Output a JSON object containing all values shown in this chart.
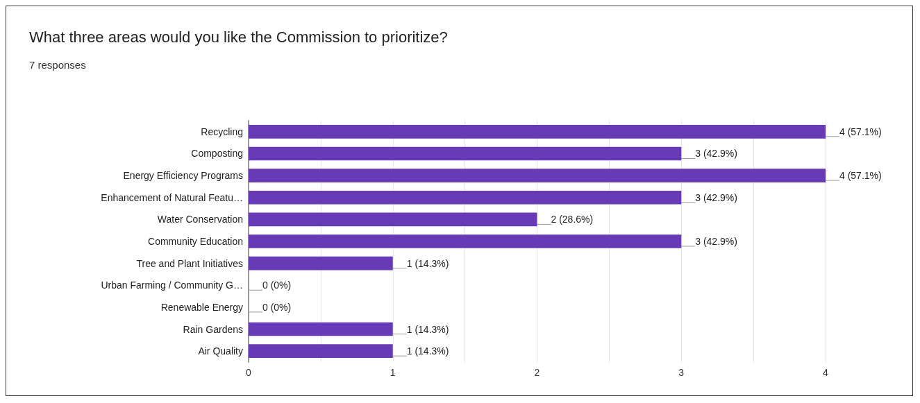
{
  "chart_data": {
    "type": "bar",
    "orientation": "horizontal",
    "title": "What three areas would you like the Commission to prioritize?",
    "subtitle": "7 responses",
    "categories": [
      "Recycling",
      "Composting",
      "Energy Efficiency Programs",
      "Enhancement of Natural Featu…",
      "Water Conservation",
      "Community Education",
      "Tree and Plant Initiatives",
      "Urban Farming / Community G…",
      "Renewable Energy",
      "Rain Gardens",
      "Air Quality"
    ],
    "values": [
      4,
      3,
      4,
      3,
      2,
      3,
      1,
      0,
      0,
      1,
      1
    ],
    "value_labels": [
      "4 (57.1%)",
      "3 (42.9%)",
      "4 (57.1%)",
      "3 (42.9%)",
      "2 (28.6%)",
      "3 (42.9%)",
      "1 (14.3%)",
      "0 (0%)",
      "0 (0%)",
      "1 (14.3%)",
      "1 (14.3%)"
    ],
    "color": "#673ab7",
    "xlim": [
      0,
      4
    ],
    "xticks": [
      0,
      {
        "value": 0.5,
        "label": null
      },
      1,
      {
        "value": 1.5,
        "label": null
      },
      2,
      {
        "value": 2.5,
        "label": null
      },
      3,
      {
        "value": 3.5,
        "label": null
      },
      4
    ],
    "grid": "x"
  }
}
